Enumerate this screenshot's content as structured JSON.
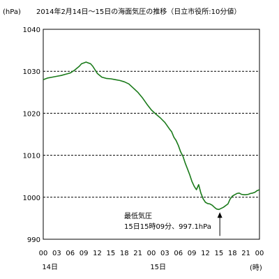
{
  "chart_data": {
    "type": "line",
    "title": "2014年2月14日～15日の海面気圧の推移（日立市役所:10分値）",
    "ylabel": "(hPa)",
    "xlabel": "(時)",
    "ylim": [
      990,
      1040
    ],
    "y_ticks": [
      "990",
      "1000",
      "1010",
      "1020",
      "1030",
      "1040"
    ],
    "xlim": [
      0,
      48
    ],
    "x_ticks": [
      "00",
      "03",
      "06",
      "09",
      "12",
      "15",
      "18",
      "21",
      "00",
      "03",
      "06",
      "09",
      "12",
      "15",
      "18",
      "21",
      "00"
    ],
    "day_labels": [
      {
        "label": "14日",
        "x": 1.5
      },
      {
        "label": "15日",
        "x": 25.5
      }
    ],
    "grid": "horizontal-dashed",
    "series": [
      {
        "color": "#1a7a1a",
        "x": [
          0,
          1,
          2,
          3,
          4,
          5,
          6,
          7,
          8,
          8.5,
          9,
          9.5,
          10,
          10.5,
          11,
          12,
          13,
          14,
          15,
          16,
          17,
          18,
          19,
          20,
          21,
          22,
          23,
          24,
          25,
          26,
          27,
          28,
          28.5,
          29,
          29.5,
          30,
          30.5,
          31,
          31.5,
          32,
          32.5,
          33,
          33.5,
          34,
          34.5,
          35,
          35.5,
          36,
          36.5,
          37,
          37.5,
          38,
          38.5,
          39,
          40,
          41,
          41.5,
          42,
          42.5,
          43,
          43.5,
          44,
          44.5,
          45,
          45.5,
          46,
          46.5,
          47,
          47.5,
          48
        ],
        "y": [
          1028.0,
          1028.4,
          1028.6,
          1028.8,
          1029.0,
          1029.3,
          1029.6,
          1030.3,
          1031.2,
          1031.8,
          1032.0,
          1032.2,
          1032.0,
          1031.8,
          1031.2,
          1029.5,
          1028.6,
          1028.3,
          1028.2,
          1028.0,
          1027.8,
          1027.5,
          1027.0,
          1026.0,
          1025.0,
          1023.7,
          1022.2,
          1020.8,
          1019.8,
          1018.9,
          1017.8,
          1016.3,
          1015.6,
          1014.3,
          1013.5,
          1012.3,
          1010.8,
          1009.8,
          1008.2,
          1006.8,
          1005.4,
          1003.8,
          1002.6,
          1001.8,
          1003.0,
          1001.0,
          999.6,
          998.8,
          998.5,
          998.4,
          998.1,
          997.6,
          997.2,
          997.1,
          997.6,
          998.4,
          999.6,
          1000.3,
          1000.6,
          1000.9,
          1001.0,
          1000.7,
          1000.6,
          1000.6,
          1000.7,
          1000.9,
          1001.0,
          1001.2,
          1001.6,
          1001.8
        ]
      }
    ],
    "annotation": {
      "line1": "最低気圧",
      "line2": "15日15時09分、997.1hPa",
      "x": 39.2,
      "y": 997.1
    }
  }
}
